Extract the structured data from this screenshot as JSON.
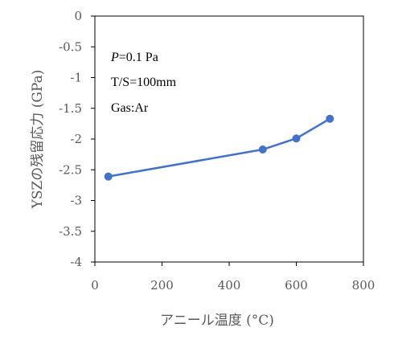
{
  "chart_data": {
    "type": "line",
    "title": "",
    "xlabel": "アニール温度 (°C)",
    "ylabel": "YSZの残留応力 (GPa)",
    "xlim": [
      0,
      800
    ],
    "ylim": [
      -4,
      0
    ],
    "x_ticks": [
      0,
      200,
      400,
      600,
      800
    ],
    "y_ticks": [
      0,
      -0.5,
      -1,
      -1.5,
      -2,
      -2.5,
      -3,
      -3.5,
      -4
    ],
    "x_tick_labels": [
      "0",
      "200",
      "400",
      "600",
      "800"
    ],
    "y_tick_labels": [
      "0",
      "-0.5",
      "-1",
      "-1.5",
      "-2",
      "-2.5",
      "-3",
      "-3.5",
      "-4"
    ],
    "grid": false,
    "series": [
      {
        "x": [
          40,
          500,
          600,
          700
        ],
        "y": [
          -2.61,
          -2.17,
          -1.99,
          -1.67
        ],
        "color": "#4472C4",
        "marker": "circle"
      }
    ],
    "annotations": [
      {
        "italic": "P",
        "text": "=0.1 Pa"
      },
      {
        "text": "T/S=100mm"
      },
      {
        "text": "Gas:Ar"
      }
    ]
  }
}
